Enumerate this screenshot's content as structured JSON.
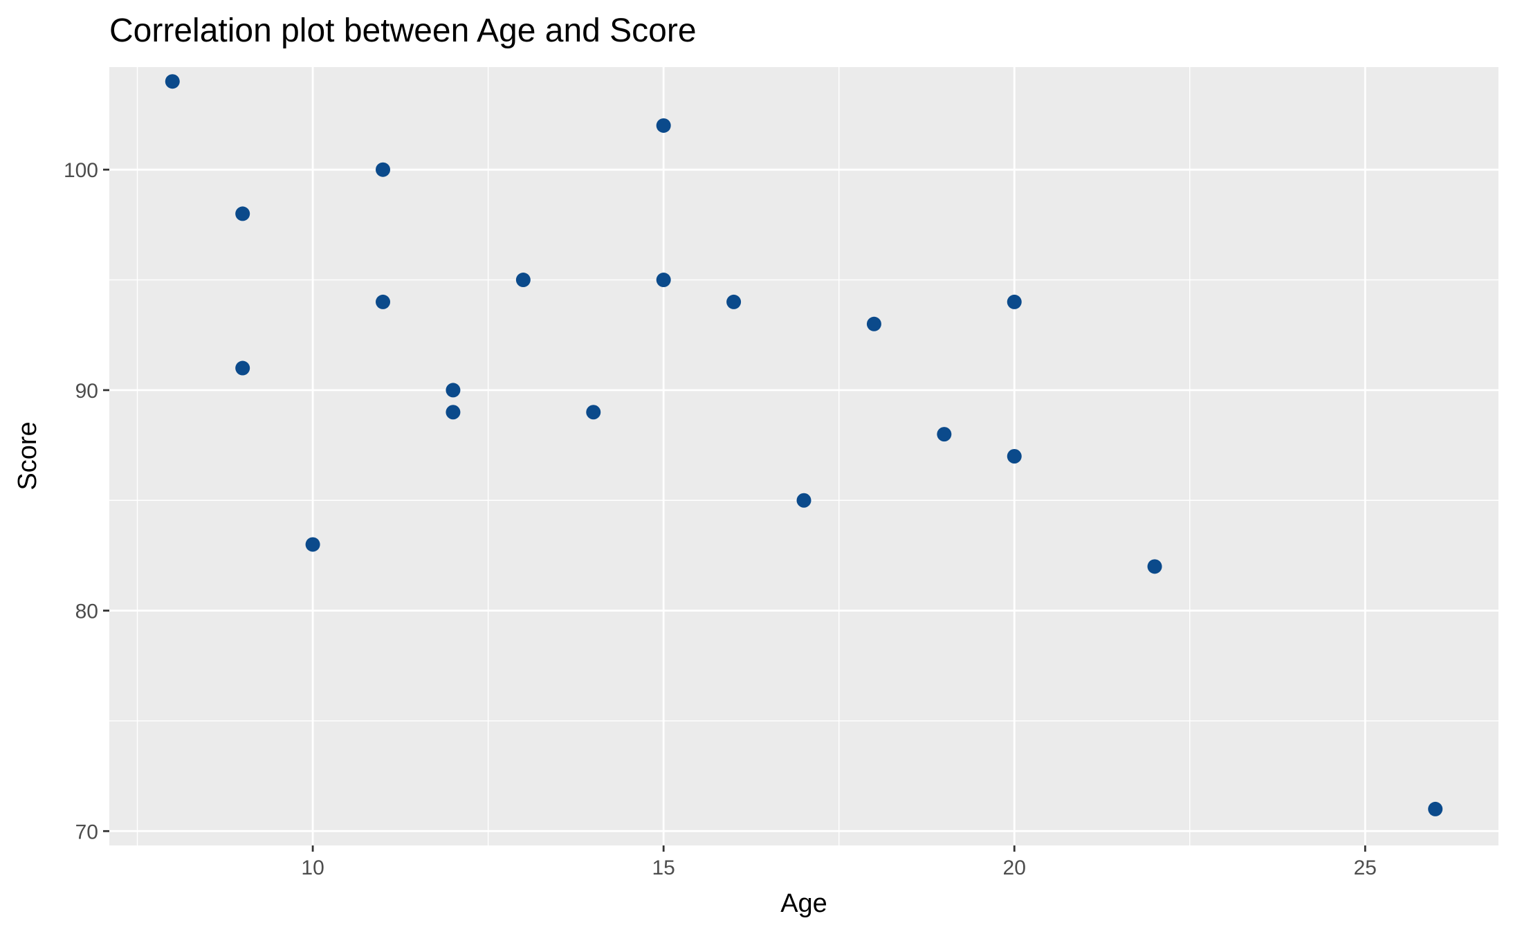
{
  "chart_data": {
    "type": "scatter",
    "title": "Correlation plot between Age and Score",
    "xlabel": "Age",
    "ylabel": "Score",
    "xlim": [
      7.1,
      26.9
    ],
    "ylim": [
      69.35,
      104.65
    ],
    "x_ticks": [
      10,
      15,
      20,
      25
    ],
    "x_minor_ticks": [
      7.5,
      12.5,
      17.5,
      22.5
    ],
    "y_ticks": [
      70,
      80,
      90,
      100
    ],
    "y_minor_ticks": [
      75,
      85,
      95
    ],
    "grid": true,
    "legend": "none",
    "point_color": "#0b4a8b",
    "panel_color": "#ebebeb",
    "points": [
      {
        "x": 8,
        "y": 104
      },
      {
        "x": 9,
        "y": 98
      },
      {
        "x": 9,
        "y": 91
      },
      {
        "x": 10,
        "y": 83
      },
      {
        "x": 11,
        "y": 100
      },
      {
        "x": 11,
        "y": 94
      },
      {
        "x": 12,
        "y": 90
      },
      {
        "x": 12,
        "y": 89
      },
      {
        "x": 13,
        "y": 95
      },
      {
        "x": 14,
        "y": 89
      },
      {
        "x": 15,
        "y": 102
      },
      {
        "x": 15,
        "y": 95
      },
      {
        "x": 16,
        "y": 94
      },
      {
        "x": 17,
        "y": 85
      },
      {
        "x": 18,
        "y": 93
      },
      {
        "x": 19,
        "y": 88
      },
      {
        "x": 20,
        "y": 94
      },
      {
        "x": 20,
        "y": 87
      },
      {
        "x": 22,
        "y": 82
      },
      {
        "x": 26,
        "y": 71
      }
    ]
  }
}
